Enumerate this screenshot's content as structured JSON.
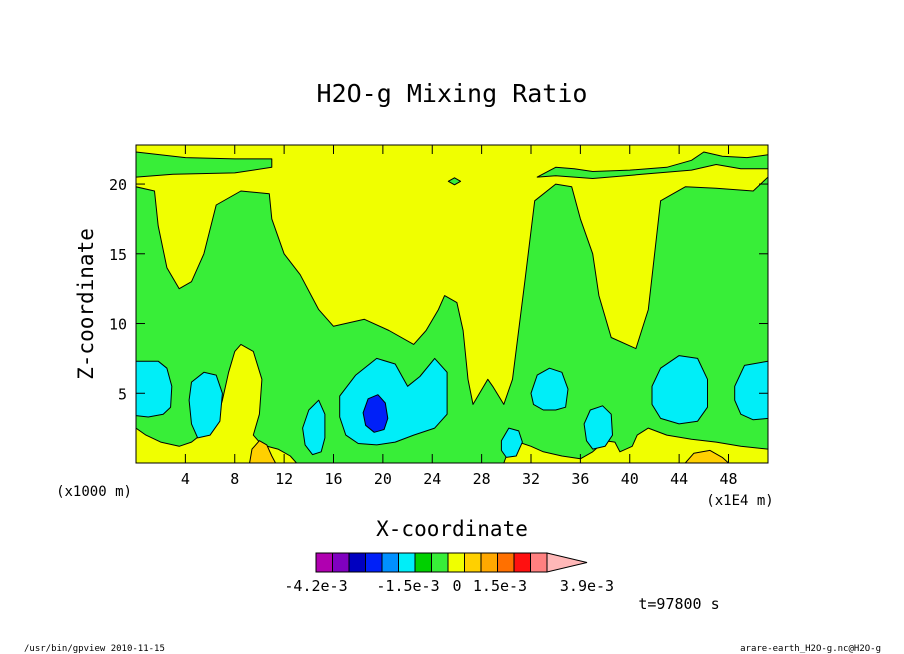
{
  "chart_data": {
    "type": "contour",
    "title": "H2O-g Mixing Ratio",
    "xlabel": "X-coordinate",
    "ylabel": "Z-coordinate",
    "x_unit": "(x1000 m)",
    "x_scale": "(x1E4 m)",
    "x_ticks": [
      4,
      8,
      12,
      16,
      20,
      24,
      28,
      32,
      36,
      40,
      44,
      48
    ],
    "y_ticks": [
      5,
      10,
      15,
      20
    ],
    "xlim": [
      0,
      51.2
    ],
    "ylim": [
      0,
      22.8
    ],
    "time_label": "t=97800 s",
    "colorbar": {
      "colors": [
        "#b000b0",
        "#8000c0",
        "#0000c0",
        "#0020f8",
        "#0090ff",
        "#00eef8",
        "#00d000",
        "#38ee38",
        "#f0ff00",
        "#ffd000",
        "#ffa800",
        "#ff7000",
        "#ff1010",
        "#ff8080",
        "#ffb8b8"
      ],
      "labels": [
        "-4.2e-3",
        "-1.5e-3",
        "0",
        "1.5e-3",
        "3.9e-3"
      ]
    },
    "regions": [
      {
        "level": "3e-4",
        "color": "#f0ff00",
        "points": [
          [
            0,
            0
          ],
          [
            51.2,
            0
          ],
          [
            51.2,
            22.8
          ],
          [
            0,
            22.8
          ]
        ]
      },
      {
        "level": "0",
        "color": "#38ee38",
        "points": [
          [
            0,
            0
          ],
          [
            51.2,
            0
          ],
          [
            51.2,
            5
          ],
          [
            51.2,
            10
          ],
          [
            51.2,
            14
          ],
          [
            51.2,
            18
          ],
          [
            51.2,
            20.5
          ],
          [
            50,
            19.5
          ],
          [
            47,
            19.7
          ],
          [
            44.5,
            19.8
          ],
          [
            42.5,
            18.8
          ],
          [
            41.5,
            11
          ],
          [
            40.5,
            8.2
          ],
          [
            38.5,
            9
          ],
          [
            37.5,
            12
          ],
          [
            37,
            15
          ],
          [
            36,
            17.5
          ],
          [
            35.3,
            19.8
          ],
          [
            34,
            20
          ],
          [
            32.3,
            18.8
          ],
          [
            31.5,
            13
          ],
          [
            30.5,
            6
          ],
          [
            29.8,
            4.2
          ],
          [
            28.9,
            5.5
          ],
          [
            28.5,
            6
          ],
          [
            27.3,
            4.2
          ],
          [
            26.9,
            6
          ],
          [
            26.5,
            9.5
          ],
          [
            26,
            11.5
          ],
          [
            25,
            12
          ],
          [
            24.5,
            11
          ],
          [
            23.5,
            9.5
          ],
          [
            22.5,
            8.5
          ],
          [
            20.5,
            9.5
          ],
          [
            18.5,
            10.3
          ],
          [
            16,
            9.8
          ],
          [
            14.8,
            11
          ],
          [
            13.3,
            13.5
          ],
          [
            12,
            15
          ],
          [
            11,
            17.5
          ],
          [
            10.8,
            19.3
          ],
          [
            8.5,
            19.5
          ],
          [
            6.5,
            18.5
          ],
          [
            5.5,
            15
          ],
          [
            4.5,
            13
          ],
          [
            3.5,
            12.5
          ],
          [
            2.5,
            14
          ],
          [
            1.8,
            17
          ],
          [
            1.5,
            19.5
          ],
          [
            0,
            19.8
          ]
        ]
      },
      {
        "level": "0",
        "color": "#38ee38",
        "points": [
          [
            0,
            20.5
          ],
          [
            3,
            20.7
          ],
          [
            8,
            20.8
          ],
          [
            11,
            21.2
          ],
          [
            11,
            21.8
          ],
          [
            8,
            21.8
          ],
          [
            4,
            21.9
          ],
          [
            0,
            22.3
          ]
        ]
      },
      {
        "level": "0",
        "color": "#38ee38",
        "points": [
          [
            32.5,
            20.5
          ],
          [
            34,
            21.2
          ],
          [
            35.5,
            21.1
          ],
          [
            37,
            20.9
          ],
          [
            40,
            21
          ],
          [
            43,
            21.2
          ],
          [
            45,
            21.7
          ],
          [
            46,
            22.3
          ],
          [
            47.5,
            22
          ],
          [
            49.5,
            21.9
          ],
          [
            51.2,
            22.1
          ],
          [
            51.2,
            21.1
          ],
          [
            49,
            21.1
          ],
          [
            47,
            21.4
          ],
          [
            45,
            21
          ],
          [
            41,
            20.7
          ],
          [
            37,
            20.4
          ],
          [
            34,
            20.6
          ]
        ]
      },
      {
        "level": "0",
        "color": "#38ee38",
        "points": [
          [
            25.3,
            20.2
          ],
          [
            25.8,
            20.45
          ],
          [
            26.3,
            20.2
          ],
          [
            25.8,
            19.95
          ]
        ]
      },
      {
        "level": "3e-4",
        "color": "#f0ff00",
        "points": [
          [
            0,
            2.5
          ],
          [
            0.8,
            2
          ],
          [
            2,
            1.5
          ],
          [
            3.5,
            1.2
          ],
          [
            4.5,
            1.5
          ],
          [
            5.5,
            2.2
          ],
          [
            6.5,
            3
          ],
          [
            7,
            4.5
          ],
          [
            7.5,
            6.5
          ],
          [
            8,
            8
          ],
          [
            8.5,
            8.5
          ],
          [
            9.5,
            8
          ],
          [
            10.2,
            6
          ],
          [
            10,
            3.5
          ],
          [
            9.5,
            2
          ],
          [
            10.2,
            1.3
          ],
          [
            11.5,
            1
          ],
          [
            12.5,
            0.5
          ],
          [
            13,
            0
          ],
          [
            0,
            0
          ]
        ]
      },
      {
        "level": "3e-4",
        "color": "#f0ff00",
        "points": [
          [
            29.8,
            0
          ],
          [
            30.3,
            1.2
          ],
          [
            31,
            1.5
          ],
          [
            32,
            1.2
          ],
          [
            33,
            0.8
          ],
          [
            34.5,
            0.5
          ],
          [
            36,
            0.3
          ],
          [
            37,
            0.8
          ],
          [
            38,
            1.6
          ],
          [
            38.8,
            1.5
          ],
          [
            39.2,
            0.8
          ],
          [
            40.2,
            1.2
          ],
          [
            40.6,
            2
          ],
          [
            41.5,
            2.5
          ],
          [
            43,
            2
          ],
          [
            45,
            1.7
          ],
          [
            47,
            1.5
          ],
          [
            49,
            1.2
          ],
          [
            51.2,
            1
          ],
          [
            51.2,
            0
          ]
        ]
      },
      {
        "level": "6e-4",
        "color": "#ffd000",
        "points": [
          [
            9.2,
            0
          ],
          [
            9.4,
            1
          ],
          [
            10,
            1.6
          ],
          [
            10.6,
            1.3
          ],
          [
            11,
            0.5
          ],
          [
            11.3,
            0
          ]
        ]
      },
      {
        "level": "6e-4",
        "color": "#ffd000",
        "points": [
          [
            44.5,
            0
          ],
          [
            45.2,
            0.7
          ],
          [
            46.5,
            0.9
          ],
          [
            47.5,
            0.4
          ],
          [
            48,
            0
          ]
        ]
      },
      {
        "level": "-3e-4",
        "color": "#00eef8",
        "points": [
          [
            0,
            7.3
          ],
          [
            1.8,
            7.3
          ],
          [
            2.5,
            6.8
          ],
          [
            2.9,
            5.5
          ],
          [
            2.8,
            4
          ],
          [
            2.2,
            3.5
          ],
          [
            1,
            3.3
          ],
          [
            0,
            3.4
          ]
        ]
      },
      {
        "level": "-3e-4",
        "color": "#00eef8",
        "points": [
          [
            4.5,
            5.8
          ],
          [
            5.5,
            6.5
          ],
          [
            6.5,
            6.3
          ],
          [
            7,
            5
          ],
          [
            6.8,
            3
          ],
          [
            6,
            2
          ],
          [
            5,
            1.8
          ],
          [
            4.5,
            2.8
          ],
          [
            4.3,
            4.5
          ]
        ]
      },
      {
        "level": "-3e-4",
        "color": "#00eef8",
        "points": [
          [
            13.5,
            2.5
          ],
          [
            14,
            3.8
          ],
          [
            14.8,
            4.5
          ],
          [
            15.3,
            3.5
          ],
          [
            15.3,
            1.8
          ],
          [
            15,
            0.8
          ],
          [
            14.3,
            0.6
          ],
          [
            13.7,
            1.3
          ]
        ]
      },
      {
        "level": "-3e-4",
        "color": "#00eef8",
        "points": [
          [
            16.5,
            4.8
          ],
          [
            17.8,
            6.3
          ],
          [
            19.5,
            7.5
          ],
          [
            21,
            7.1
          ],
          [
            22,
            5.5
          ],
          [
            23,
            6.2
          ],
          [
            24.2,
            7.5
          ],
          [
            25.2,
            6.5
          ],
          [
            25.2,
            3.5
          ],
          [
            24.2,
            2.5
          ],
          [
            22.5,
            2
          ],
          [
            21,
            1.5
          ],
          [
            19.5,
            1.3
          ],
          [
            18,
            1.4
          ],
          [
            17,
            2
          ],
          [
            16.5,
            3.3
          ]
        ]
      },
      {
        "level": "-3e-4",
        "color": "#00eef8",
        "points": [
          [
            29.6,
            1.6
          ],
          [
            30.2,
            2.5
          ],
          [
            31,
            2.3
          ],
          [
            31.3,
            1.5
          ],
          [
            30.8,
            0.5
          ],
          [
            30,
            0.4
          ],
          [
            29.6,
            0.9
          ]
        ]
      },
      {
        "level": "-3e-4",
        "color": "#00eef8",
        "points": [
          [
            32,
            5
          ],
          [
            32.5,
            6.3
          ],
          [
            33.5,
            6.8
          ],
          [
            34.5,
            6.5
          ],
          [
            35,
            5.3
          ],
          [
            34.8,
            4
          ],
          [
            34,
            3.8
          ],
          [
            33,
            3.8
          ],
          [
            32.2,
            4.2
          ]
        ]
      },
      {
        "level": "-3e-4",
        "color": "#00eef8",
        "points": [
          [
            36.3,
            2.8
          ],
          [
            36.8,
            3.8
          ],
          [
            37.8,
            4.1
          ],
          [
            38.5,
            3.5
          ],
          [
            38.6,
            2
          ],
          [
            38,
            1.2
          ],
          [
            37,
            1
          ],
          [
            36.5,
            1.6
          ]
        ]
      },
      {
        "level": "-3e-4",
        "color": "#00eef8",
        "points": [
          [
            41.8,
            5.5
          ],
          [
            42.5,
            6.8
          ],
          [
            44,
            7.7
          ],
          [
            45.5,
            7.5
          ],
          [
            46.3,
            6
          ],
          [
            46.3,
            4
          ],
          [
            45.5,
            3
          ],
          [
            44,
            2.8
          ],
          [
            42.5,
            3.2
          ],
          [
            41.8,
            4.2
          ]
        ]
      },
      {
        "level": "-3e-4",
        "color": "#00eef8",
        "points": [
          [
            48.5,
            5.5
          ],
          [
            49.3,
            7
          ],
          [
            51.2,
            7.3
          ],
          [
            51.2,
            3.2
          ],
          [
            50,
            3.1
          ],
          [
            49,
            3.5
          ],
          [
            48.5,
            4.5
          ]
        ]
      },
      {
        "level": "-9e-4",
        "color": "#0020f8",
        "points": [
          [
            18.4,
            3.6
          ],
          [
            18.8,
            4.6
          ],
          [
            19.6,
            4.9
          ],
          [
            20.2,
            4.3
          ],
          [
            20.4,
            3.2
          ],
          [
            20.1,
            2.4
          ],
          [
            19.3,
            2.2
          ],
          [
            18.6,
            2.7
          ]
        ]
      }
    ]
  },
  "footer": {
    "left": "/usr/bin/gpview  2010-11-15",
    "right": "arare-earth_H2O-g.nc@H2O-g"
  }
}
